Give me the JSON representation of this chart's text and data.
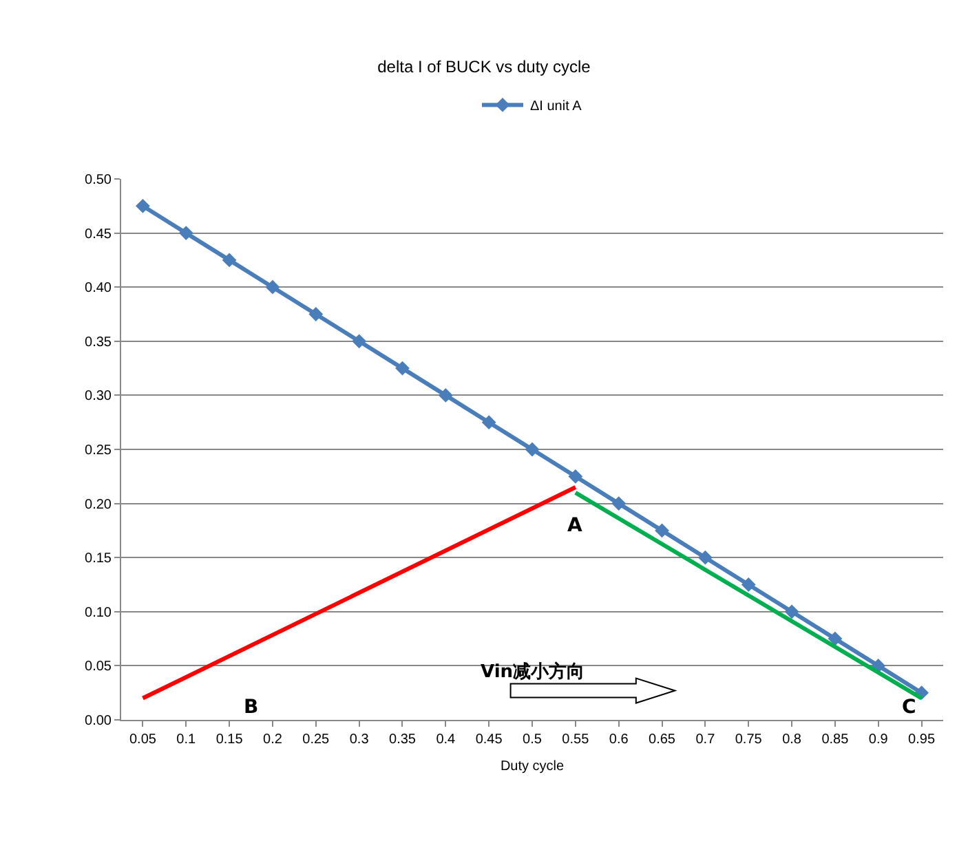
{
  "chart_data": {
    "type": "line",
    "title": "delta I of BUCK vs duty cycle",
    "xlabel": "Duty cycle",
    "categories": [
      "0.05",
      "0.1",
      "0.15",
      "0.2",
      "0.25",
      "0.3",
      "0.35",
      "0.4",
      "0.45",
      "0.5",
      "0.55",
      "0.6",
      "0.65",
      "0.7",
      "0.75",
      "0.8",
      "0.85",
      "0.9",
      "0.95"
    ],
    "series": [
      {
        "name": "ΔI unit A",
        "color": "#4a7ebb",
        "marker": "diamond",
        "values": [
          0.475,
          0.45,
          0.425,
          0.4,
          0.375,
          0.35,
          0.325,
          0.3,
          0.275,
          0.25,
          0.225,
          0.2,
          0.175,
          0.15,
          0.125,
          0.1,
          0.075,
          0.05,
          0.025
        ]
      },
      {
        "color": "#ff0000",
        "marker": "none",
        "x": [
          "0.05",
          "0.55"
        ],
        "values": [
          0.02,
          0.215
        ]
      },
      {
        "color": "#00b050",
        "marker": "none",
        "x": [
          "0.55",
          "0.95"
        ],
        "values": [
          0.21,
          0.02
        ]
      }
    ],
    "ylim": [
      0,
      0.5
    ],
    "yticks": [
      {
        "value": 0,
        "label": "0.00"
      },
      {
        "value": 0.05,
        "label": "0.05"
      },
      {
        "value": 0.1,
        "label": "0.10"
      },
      {
        "value": 0.15,
        "label": "0.15"
      },
      {
        "value": 0.2,
        "label": "0.20"
      },
      {
        "value": 0.25,
        "label": "0.25"
      },
      {
        "value": 0.3,
        "label": "0.30"
      },
      {
        "value": 0.35,
        "label": "0.35"
      },
      {
        "value": 0.4,
        "label": "0.40"
      },
      {
        "value": 0.45,
        "label": "0.45"
      },
      {
        "value": 0.5,
        "label": "0.50"
      }
    ],
    "grid": "y",
    "legend": "top",
    "line_style": "solid",
    "annotations": [
      "A",
      "B",
      "C",
      "Vin减小方向"
    ]
  }
}
